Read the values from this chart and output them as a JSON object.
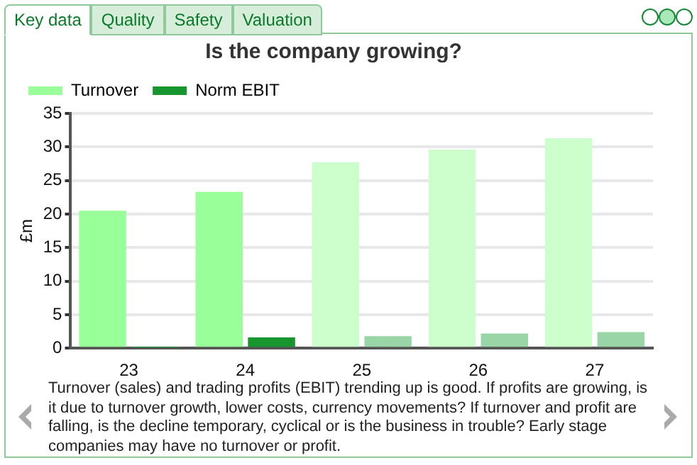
{
  "chart_data": {
    "type": "bar",
    "title": "Is the company growing?",
    "ylabel": "£m",
    "categories": [
      "23",
      "24",
      "25",
      "26",
      "27"
    ],
    "series": [
      {
        "name": "Turnover",
        "color": "#99ff99",
        "colors": [
          "#99ff99",
          "#99ff99",
          "#ccffcc",
          "#ccffcc",
          "#ccffcc"
        ],
        "values": [
          20.5,
          23.3,
          27.7,
          29.6,
          31.3
        ]
      },
      {
        "name": "Norm EBIT",
        "color": "#17952e",
        "colors": [
          "#17952e",
          "#17952e",
          "#99d5a6",
          "#99d5a6",
          "#99d5a6"
        ],
        "values": [
          0.1,
          1.6,
          1.8,
          2.2,
          2.4
        ]
      }
    ],
    "ylim": [
      0,
      35
    ],
    "yticks": [
      0,
      5,
      10,
      15,
      20,
      25,
      30,
      35
    ],
    "grid": "y",
    "legend": "top left",
    "annotations": [
      "Key data",
      "Quality",
      "Safety",
      "Valuation",
      "Turnover (sales) and trading profits (EBIT) trending up is good. If profits are growing, is it due to turnover growth, lower costs, currency movements? If turnover and profit are falling, is the decline temporary, cyclical or is the business in trouble? Early stage companies may have no turnover or profit."
    ]
  }
}
